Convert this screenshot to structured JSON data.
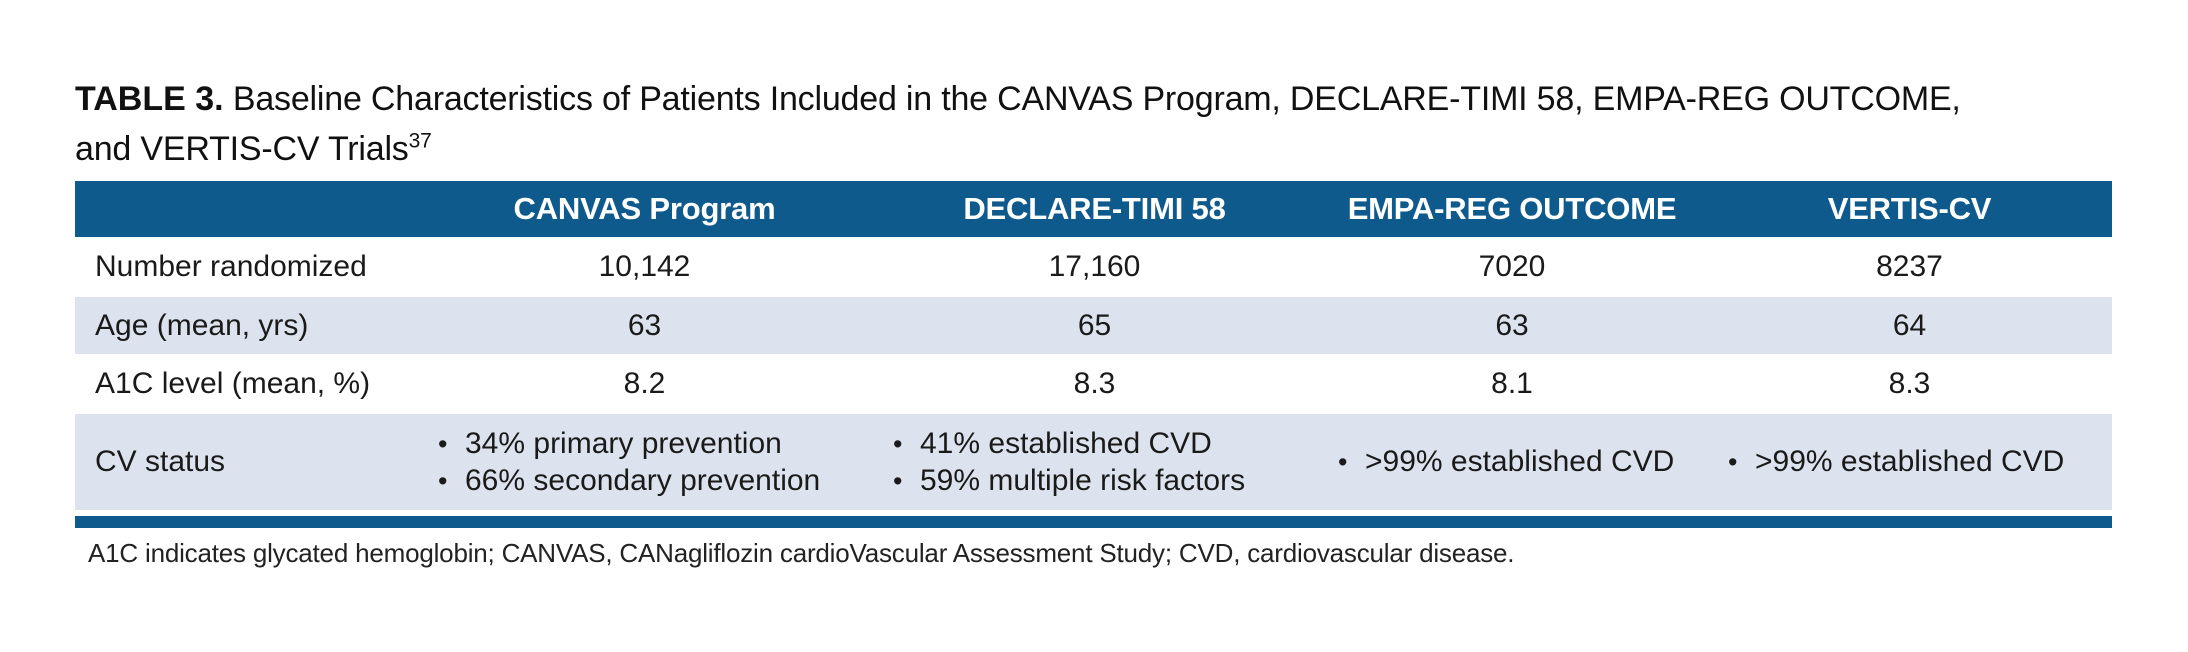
{
  "title": {
    "label": "TABLE 3.",
    "line1_rest": " Baseline Characteristics of Patients Included in the CANVAS Program, DECLARE-TIMI 58, EMPA-REG OUTCOME,",
    "line2": "and VERTIS-CV Trials",
    "reference_superscript": "37"
  },
  "bullet_char": "•",
  "table": {
    "columns": [
      "",
      "CANVAS Program",
      "DECLARE-TIMI 58",
      "EMPA-REG OUTCOME",
      "VERTIS-CV"
    ],
    "rows": [
      {
        "label": "Number randomized",
        "values": [
          "10,142",
          "17,160",
          "7020",
          "8237"
        ]
      },
      {
        "label": "Age (mean, yrs)",
        "values": [
          "63",
          "65",
          "63",
          "64"
        ]
      },
      {
        "label": "A1C level (mean, %)",
        "values": [
          "8.2",
          "8.3",
          "8.1",
          "8.3"
        ]
      },
      {
        "label": "CV status",
        "bullets": [
          [
            "34% primary prevention",
            "66% secondary prevention"
          ],
          [
            "41% established CVD",
            "59% multiple risk factors"
          ],
          [
            ">99% established CVD"
          ],
          [
            ">99% established CVD"
          ]
        ]
      }
    ]
  },
  "footnote": "A1C indicates glycated hemoglobin; CANVAS, CANagliflozin cardioVascular Assessment Study; CVD, cardiovascular disease.",
  "colors": {
    "header_bg": "#0f5a8c",
    "row_alt_bg": "#dde3ee",
    "bottom_bar": "#0f5a8c",
    "header_text": "#ffffff",
    "body_text": "#1a1a1a"
  }
}
